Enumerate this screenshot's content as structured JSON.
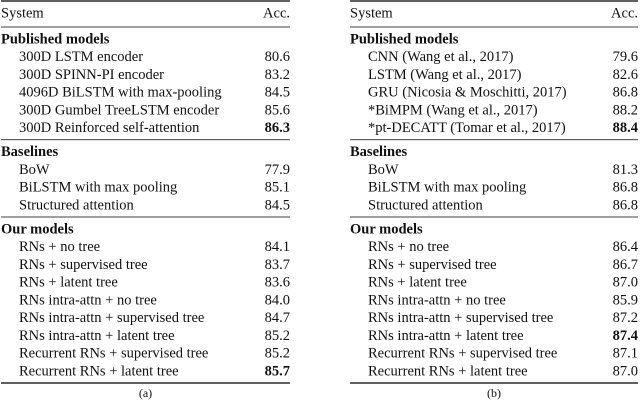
{
  "tables": [
    {
      "header": [
        "System",
        "Acc."
      ],
      "caption": "(a)",
      "sections": [
        {
          "title": "Published models",
          "rows": [
            {
              "system": "300D LSTM encoder",
              "acc": "80.6"
            },
            {
              "system": "300D SPINN-PI encoder",
              "acc": "83.2"
            },
            {
              "system": "4096D BiLSTM with max-pooling",
              "acc": "84.5"
            },
            {
              "system": "300D Gumbel TreeLSTM encoder",
              "acc": "85.6"
            },
            {
              "system": "300D Reinforced self-attention",
              "acc": "86.3",
              "bold": true
            }
          ]
        },
        {
          "title": "Baselines",
          "rows": [
            {
              "system": "BoW",
              "acc": "77.9"
            },
            {
              "system": "BiLSTM with max pooling",
              "acc": "85.1"
            },
            {
              "system": "Structured attention",
              "acc": "84.5"
            }
          ]
        },
        {
          "title": "Our models",
          "rows": [
            {
              "system": "RNs + no tree",
              "acc": "84.1"
            },
            {
              "system": "RNs + supervised tree",
              "acc": "83.7"
            },
            {
              "system": "RNs + latent tree",
              "acc": "83.6"
            },
            {
              "system": "RNs intra-attn + no tree",
              "acc": "84.0"
            },
            {
              "system": "RNs intra-attn + supervised tree",
              "acc": "84.7"
            },
            {
              "system": "RNs intra-attn + latent tree",
              "acc": "85.2"
            },
            {
              "system": "Recurrent RNs + supervised tree",
              "acc": "85.2"
            },
            {
              "system": "Recurrent RNs + latent tree",
              "acc": "85.7",
              "bold": true
            }
          ]
        }
      ]
    },
    {
      "header": [
        "System",
        "Acc."
      ],
      "caption": "(b)",
      "sections": [
        {
          "title": "Published models",
          "rows": [
            {
              "system": "CNN (Wang et al., 2017)",
              "acc": "79.6"
            },
            {
              "system": "LSTM (Wang et al., 2017)",
              "acc": "82.6"
            },
            {
              "system": "GRU (Nicosia & Moschitti, 2017)",
              "acc": "86.8"
            },
            {
              "system": "*BiMPM (Wang et al., 2017)",
              "acc": "88.2"
            },
            {
              "system": "*pt-DECATT (Tomar et al., 2017)",
              "acc": "88.4",
              "bold": true
            }
          ]
        },
        {
          "title": "Baselines",
          "rows": [
            {
              "system": "BoW",
              "acc": "81.3"
            },
            {
              "system": "BiLSTM with max pooling",
              "acc": "86.8"
            },
            {
              "system": "Structured attention",
              "acc": "86.8"
            }
          ]
        },
        {
          "title": "Our models",
          "rows": [
            {
              "system": "RNs + no tree",
              "acc": "86.4"
            },
            {
              "system": "RNs + supervised tree",
              "acc": "86.7"
            },
            {
              "system": "RNs + latent tree",
              "acc": "87.0"
            },
            {
              "system": "RNs intra-attn + no tree",
              "acc": "85.9"
            },
            {
              "system": "RNs intra-attn + supervised tree",
              "acc": "87.2"
            },
            {
              "system": "RNs intra-attn + latent tree",
              "acc": "87.4",
              "bold": true
            },
            {
              "system": "Recurrent RNs + supervised tree",
              "acc": "87.1"
            },
            {
              "system": "Recurrent RNs + latent tree",
              "acc": "87.0"
            }
          ]
        }
      ]
    }
  ]
}
